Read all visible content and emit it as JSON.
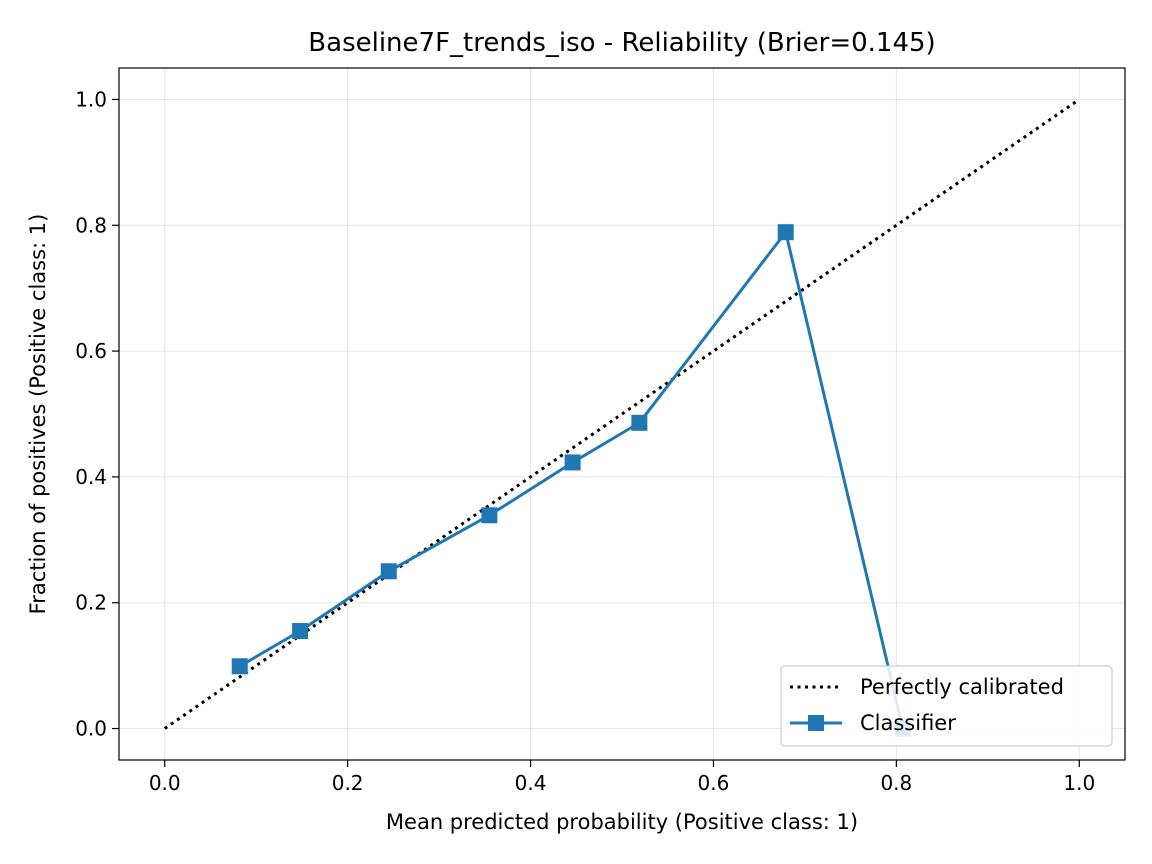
{
  "chart_data": {
    "type": "line",
    "title": "Baseline7F_trends_iso - Reliability (Brier=0.145)",
    "xlabel": "Mean predicted probability (Positive class: 1)",
    "ylabel": "Fraction of positives (Positive class: 1)",
    "xlim": [
      -0.05,
      1.05
    ],
    "ylim": [
      -0.05,
      1.05
    ],
    "xticks": [
      "0.0",
      "0.2",
      "0.4",
      "0.6",
      "0.8",
      "1.0"
    ],
    "yticks": [
      "0.0",
      "0.2",
      "0.4",
      "0.6",
      "0.8",
      "1.0"
    ],
    "grid": true,
    "legend_position": "lower-right",
    "series": [
      {
        "name": "Perfectly calibrated",
        "style": "dotted",
        "color": "#000000",
        "x": [
          0.0,
          1.0
        ],
        "y": [
          0.0,
          1.0
        ]
      },
      {
        "name": "Classifier",
        "style": "solid-square-markers",
        "color": "#1f77b4",
        "x": [
          0.082,
          0.148,
          0.245,
          0.355,
          0.446,
          0.519,
          0.679,
          0.807
        ],
        "y": [
          0.099,
          0.155,
          0.25,
          0.339,
          0.423,
          0.486,
          0.789,
          0.0
        ]
      }
    ]
  }
}
